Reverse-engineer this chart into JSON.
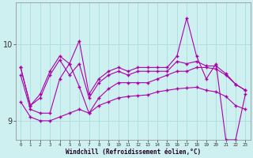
{
  "x": [
    0,
    1,
    2,
    3,
    4,
    5,
    6,
    7,
    8,
    9,
    10,
    11,
    12,
    13,
    14,
    15,
    16,
    17,
    18,
    19,
    20,
    21,
    22,
    23
  ],
  "line_top": [
    9.7,
    9.2,
    9.35,
    9.65,
    9.85,
    9.75,
    10.05,
    9.35,
    9.55,
    9.65,
    9.7,
    9.65,
    9.7,
    9.7,
    9.7,
    9.7,
    9.85,
    10.35,
    9.85,
    9.55,
    9.75,
    8.75,
    8.75,
    9.35
  ],
  "line_mid_hi": [
    9.7,
    9.2,
    9.3,
    9.6,
    9.8,
    9.6,
    9.75,
    9.3,
    9.5,
    9.6,
    9.65,
    9.6,
    9.65,
    9.65,
    9.65,
    9.65,
    9.78,
    9.75,
    9.78,
    9.72,
    9.72,
    9.62,
    9.48,
    9.4
  ],
  "line_mid_lo": [
    9.6,
    9.15,
    9.1,
    9.1,
    9.55,
    9.75,
    9.45,
    9.1,
    9.3,
    9.42,
    9.5,
    9.5,
    9.5,
    9.5,
    9.55,
    9.6,
    9.65,
    9.65,
    9.7,
    9.7,
    9.68,
    9.6,
    9.48,
    9.4
  ],
  "line_bot": [
    9.25,
    9.05,
    9.0,
    9.0,
    9.05,
    9.1,
    9.15,
    9.1,
    9.2,
    9.25,
    9.3,
    9.32,
    9.33,
    9.34,
    9.38,
    9.4,
    9.42,
    9.43,
    9.44,
    9.4,
    9.38,
    9.32,
    9.2,
    9.15
  ],
  "line_color": "#aa00aa",
  "bg_color": "#cef0f0",
  "grid_color": "#aadddd",
  "xlabel": "Windchill (Refroidissement éolien,°C)",
  "yticks": [
    9,
    10
  ],
  "ylim": [
    8.75,
    10.55
  ],
  "xlim": [
    -0.5,
    23.5
  ]
}
